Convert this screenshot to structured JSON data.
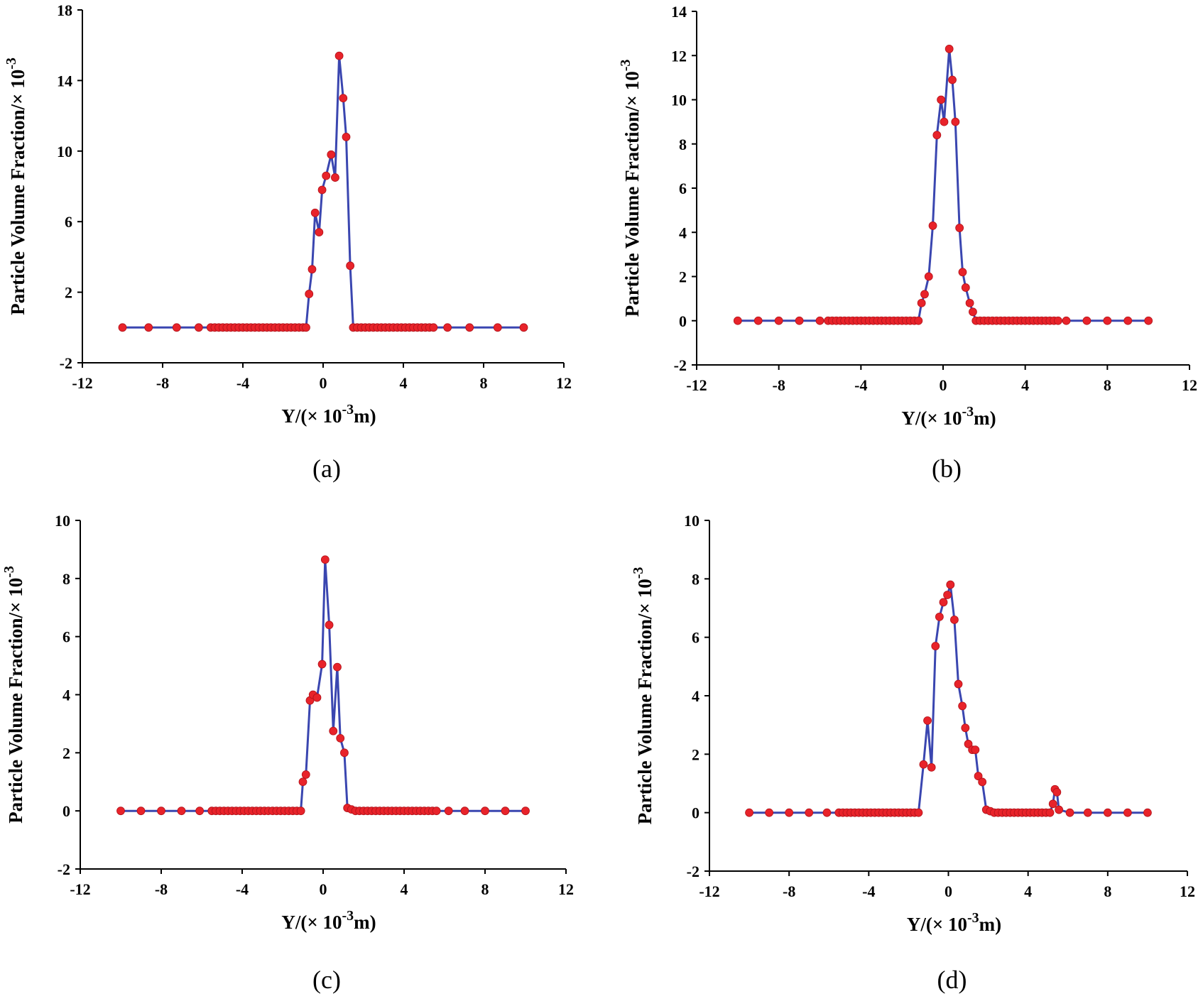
{
  "colors": {
    "line": "#3a46b0",
    "marker": "#e8232a",
    "axis": "#000000"
  },
  "chart_data": [
    {
      "type": "line",
      "caption": "(a)",
      "xlabel_main": "Y/(× 10",
      "xlabel_sup": "-3",
      "xlabel_end": "m)",
      "ylabel_main": "Particle Volume Fraction/× 10",
      "ylabel_sup": "-3",
      "xlim": [
        -12,
        12
      ],
      "ylim": [
        -2,
        18
      ],
      "xticks": [
        -12,
        -8,
        -4,
        0,
        4,
        8,
        12
      ],
      "yticks": [
        -2,
        2,
        6,
        10,
        14,
        18
      ],
      "points": [
        [
          -10,
          0
        ],
        [
          -8.7,
          0
        ],
        [
          -7.3,
          0
        ],
        [
          -6.2,
          0
        ],
        [
          -5.6,
          0
        ],
        [
          -5.4,
          0
        ],
        [
          -5.2,
          0
        ],
        [
          -5,
          0
        ],
        [
          -4.8,
          0
        ],
        [
          -4.6,
          0
        ],
        [
          -4.4,
          0
        ],
        [
          -4.2,
          0
        ],
        [
          -4,
          0
        ],
        [
          -3.8,
          0
        ],
        [
          -3.6,
          0
        ],
        [
          -3.4,
          0
        ],
        [
          -3.2,
          0
        ],
        [
          -3,
          0
        ],
        [
          -2.8,
          0
        ],
        [
          -2.6,
          0
        ],
        [
          -2.4,
          0
        ],
        [
          -2.2,
          0
        ],
        [
          -2,
          0
        ],
        [
          -1.8,
          0
        ],
        [
          -1.6,
          0
        ],
        [
          -1.4,
          0
        ],
        [
          -1.2,
          0
        ],
        [
          -1,
          0
        ],
        [
          -0.85,
          0
        ],
        [
          -0.7,
          1.9
        ],
        [
          -0.55,
          3.3
        ],
        [
          -0.4,
          6.5
        ],
        [
          -0.2,
          5.4
        ],
        [
          -0.05,
          7.8
        ],
        [
          0.15,
          8.6
        ],
        [
          0.4,
          9.8
        ],
        [
          0.6,
          8.5
        ],
        [
          0.8,
          15.4
        ],
        [
          1.0,
          13.0
        ],
        [
          1.15,
          10.8
        ],
        [
          1.35,
          3.5
        ],
        [
          1.5,
          0
        ],
        [
          1.7,
          0
        ],
        [
          1.9,
          0
        ],
        [
          2.1,
          0
        ],
        [
          2.3,
          0
        ],
        [
          2.5,
          0
        ],
        [
          2.7,
          0
        ],
        [
          2.9,
          0
        ],
        [
          3.1,
          0
        ],
        [
          3.3,
          0
        ],
        [
          3.5,
          0
        ],
        [
          3.7,
          0
        ],
        [
          3.9,
          0
        ],
        [
          4.1,
          0
        ],
        [
          4.3,
          0
        ],
        [
          4.5,
          0
        ],
        [
          4.7,
          0
        ],
        [
          4.9,
          0
        ],
        [
          5.1,
          0
        ],
        [
          5.3,
          0
        ],
        [
          5.5,
          0
        ],
        [
          6.2,
          0
        ],
        [
          7.3,
          0
        ],
        [
          8.7,
          0
        ],
        [
          10,
          0
        ]
      ]
    },
    {
      "type": "line",
      "caption": "(b)",
      "xlabel_main": "Y/(× 10",
      "xlabel_sup": "-3",
      "xlabel_end": "m)",
      "ylabel_main": "Particle Volume Fraction/× 10",
      "ylabel_sup": "-3",
      "xlim": [
        -12,
        12
      ],
      "ylim": [
        -2,
        14
      ],
      "xticks": [
        -12,
        -8,
        -4,
        0,
        4,
        8,
        12
      ],
      "yticks": [
        -2,
        0,
        2,
        4,
        6,
        8,
        10,
        12,
        14
      ],
      "points": [
        [
          -10,
          0
        ],
        [
          -9,
          0
        ],
        [
          -8,
          0
        ],
        [
          -7,
          0
        ],
        [
          -6,
          0
        ],
        [
          -5.6,
          0
        ],
        [
          -5.4,
          0
        ],
        [
          -5.2,
          0
        ],
        [
          -5,
          0
        ],
        [
          -4.8,
          0
        ],
        [
          -4.6,
          0
        ],
        [
          -4.4,
          0
        ],
        [
          -4.2,
          0
        ],
        [
          -4,
          0
        ],
        [
          -3.8,
          0
        ],
        [
          -3.6,
          0
        ],
        [
          -3.4,
          0
        ],
        [
          -3.2,
          0
        ],
        [
          -3,
          0
        ],
        [
          -2.8,
          0
        ],
        [
          -2.6,
          0
        ],
        [
          -2.4,
          0
        ],
        [
          -2.2,
          0
        ],
        [
          -2,
          0
        ],
        [
          -1.8,
          0
        ],
        [
          -1.6,
          0
        ],
        [
          -1.4,
          0
        ],
        [
          -1.2,
          0
        ],
        [
          -1.05,
          0.8
        ],
        [
          -0.9,
          1.2
        ],
        [
          -0.7,
          2.0
        ],
        [
          -0.5,
          4.3
        ],
        [
          -0.3,
          8.4
        ],
        [
          -0.1,
          10.0
        ],
        [
          0.05,
          9.0
        ],
        [
          0.3,
          12.3
        ],
        [
          0.45,
          10.9
        ],
        [
          0.6,
          9.0
        ],
        [
          0.8,
          4.2
        ],
        [
          0.95,
          2.2
        ],
        [
          1.1,
          1.5
        ],
        [
          1.3,
          0.8
        ],
        [
          1.45,
          0.4
        ],
        [
          1.6,
          0
        ],
        [
          1.8,
          0
        ],
        [
          2,
          0
        ],
        [
          2.2,
          0
        ],
        [
          2.4,
          0
        ],
        [
          2.6,
          0
        ],
        [
          2.8,
          0
        ],
        [
          3,
          0
        ],
        [
          3.2,
          0
        ],
        [
          3.4,
          0
        ],
        [
          3.6,
          0
        ],
        [
          3.8,
          0
        ],
        [
          4,
          0
        ],
        [
          4.2,
          0
        ],
        [
          4.4,
          0
        ],
        [
          4.6,
          0
        ],
        [
          4.8,
          0
        ],
        [
          5,
          0
        ],
        [
          5.2,
          0
        ],
        [
          5.4,
          0
        ],
        [
          5.6,
          0
        ],
        [
          6,
          0
        ],
        [
          7,
          0
        ],
        [
          8,
          0
        ],
        [
          9,
          0
        ],
        [
          10,
          0
        ]
      ]
    },
    {
      "type": "line",
      "caption": "(c)",
      "xlabel_main": "Y/(× 10",
      "xlabel_sup": "-3",
      "xlabel_end": "m)",
      "ylabel_main": "Particle Volume Fraction/× 10",
      "ylabel_sup": "-3",
      "xlim": [
        -12,
        12
      ],
      "ylim": [
        -2,
        10
      ],
      "xticks": [
        -12,
        -8,
        -4,
        0,
        4,
        8,
        12
      ],
      "yticks": [
        -2,
        0,
        2,
        4,
        6,
        8,
        10
      ],
      "points": [
        [
          -10,
          0
        ],
        [
          -9,
          0
        ],
        [
          -8,
          0
        ],
        [
          -7,
          0
        ],
        [
          -6.1,
          0
        ],
        [
          -5.5,
          0
        ],
        [
          -5.3,
          0
        ],
        [
          -5.1,
          0
        ],
        [
          -4.9,
          0
        ],
        [
          -4.7,
          0
        ],
        [
          -4.5,
          0
        ],
        [
          -4.3,
          0
        ],
        [
          -4.1,
          0
        ],
        [
          -3.9,
          0
        ],
        [
          -3.7,
          0
        ],
        [
          -3.5,
          0
        ],
        [
          -3.3,
          0
        ],
        [
          -3.1,
          0
        ],
        [
          -2.9,
          0
        ],
        [
          -2.7,
          0
        ],
        [
          -2.5,
          0
        ],
        [
          -2.3,
          0
        ],
        [
          -2.1,
          0
        ],
        [
          -1.9,
          0
        ],
        [
          -1.7,
          0
        ],
        [
          -1.5,
          0
        ],
        [
          -1.3,
          0
        ],
        [
          -1.1,
          0
        ],
        [
          -1.0,
          1.0
        ],
        [
          -0.85,
          1.25
        ],
        [
          -0.65,
          3.8
        ],
        [
          -0.5,
          4.0
        ],
        [
          -0.3,
          3.9
        ],
        [
          -0.05,
          5.05
        ],
        [
          0.1,
          8.65
        ],
        [
          0.3,
          6.4
        ],
        [
          0.5,
          2.75
        ],
        [
          0.7,
          4.95
        ],
        [
          0.85,
          2.5
        ],
        [
          1.05,
          2.0
        ],
        [
          1.2,
          0.1
        ],
        [
          1.4,
          0.05
        ],
        [
          1.6,
          0
        ],
        [
          1.8,
          0
        ],
        [
          2,
          0
        ],
        [
          2.2,
          0
        ],
        [
          2.4,
          0
        ],
        [
          2.6,
          0
        ],
        [
          2.8,
          0
        ],
        [
          3,
          0
        ],
        [
          3.2,
          0
        ],
        [
          3.4,
          0
        ],
        [
          3.6,
          0
        ],
        [
          3.8,
          0
        ],
        [
          4,
          0
        ],
        [
          4.2,
          0
        ],
        [
          4.4,
          0
        ],
        [
          4.6,
          0
        ],
        [
          4.8,
          0
        ],
        [
          5,
          0
        ],
        [
          5.2,
          0
        ],
        [
          5.4,
          0
        ],
        [
          5.6,
          0
        ],
        [
          6.2,
          0
        ],
        [
          7,
          0
        ],
        [
          8,
          0
        ],
        [
          9,
          0
        ],
        [
          10,
          0
        ]
      ]
    },
    {
      "type": "line",
      "caption": "(d)",
      "xlabel_main": "Y/(× 10",
      "xlabel_sup": "-3",
      "xlabel_end": "m)",
      "ylabel_main": "Particle Volume Fraction/× 10",
      "ylabel_sup": "-3",
      "xlim": [
        -12,
        12
      ],
      "ylim": [
        -2,
        10
      ],
      "xticks": [
        -12,
        -8,
        -4,
        0,
        4,
        8,
        12
      ],
      "yticks": [
        -2,
        0,
        2,
        4,
        6,
        8,
        10
      ],
      "points": [
        [
          -10,
          0
        ],
        [
          -9,
          0
        ],
        [
          -8,
          0
        ],
        [
          -7,
          0
        ],
        [
          -6.1,
          0
        ],
        [
          -5.5,
          0
        ],
        [
          -5.3,
          0
        ],
        [
          -5.1,
          0
        ],
        [
          -4.9,
          0
        ],
        [
          -4.7,
          0
        ],
        [
          -4.5,
          0
        ],
        [
          -4.3,
          0
        ],
        [
          -4.1,
          0
        ],
        [
          -3.9,
          0
        ],
        [
          -3.7,
          0
        ],
        [
          -3.5,
          0
        ],
        [
          -3.3,
          0
        ],
        [
          -3.1,
          0
        ],
        [
          -2.9,
          0
        ],
        [
          -2.7,
          0
        ],
        [
          -2.5,
          0
        ],
        [
          -2.3,
          0
        ],
        [
          -2.1,
          0
        ],
        [
          -1.9,
          0
        ],
        [
          -1.7,
          0
        ],
        [
          -1.5,
          0
        ],
        [
          -1.25,
          1.65
        ],
        [
          -1.05,
          3.15
        ],
        [
          -0.85,
          1.55
        ],
        [
          -0.65,
          5.7
        ],
        [
          -0.45,
          6.7
        ],
        [
          -0.25,
          7.2
        ],
        [
          -0.05,
          7.45
        ],
        [
          0.1,
          7.8
        ],
        [
          0.3,
          6.6
        ],
        [
          0.5,
          4.4
        ],
        [
          0.7,
          3.65
        ],
        [
          0.85,
          2.9
        ],
        [
          1.0,
          2.35
        ],
        [
          1.2,
          2.15
        ],
        [
          1.35,
          2.15
        ],
        [
          1.5,
          1.25
        ],
        [
          1.7,
          1.05
        ],
        [
          1.9,
          0.1
        ],
        [
          2.1,
          0.05
        ],
        [
          2.3,
          0
        ],
        [
          2.5,
          0
        ],
        [
          2.7,
          0
        ],
        [
          2.9,
          0
        ],
        [
          3.1,
          0
        ],
        [
          3.3,
          0
        ],
        [
          3.5,
          0
        ],
        [
          3.7,
          0
        ],
        [
          3.9,
          0
        ],
        [
          4.1,
          0
        ],
        [
          4.3,
          0
        ],
        [
          4.5,
          0
        ],
        [
          4.7,
          0
        ],
        [
          4.9,
          0
        ],
        [
          5.1,
          0
        ],
        [
          5.25,
          0.3
        ],
        [
          5.35,
          0.8
        ],
        [
          5.45,
          0.7
        ],
        [
          5.55,
          0.1
        ],
        [
          6.1,
          0
        ],
        [
          7,
          0
        ],
        [
          8,
          0
        ],
        [
          9,
          0
        ],
        [
          10,
          0
        ]
      ]
    }
  ]
}
